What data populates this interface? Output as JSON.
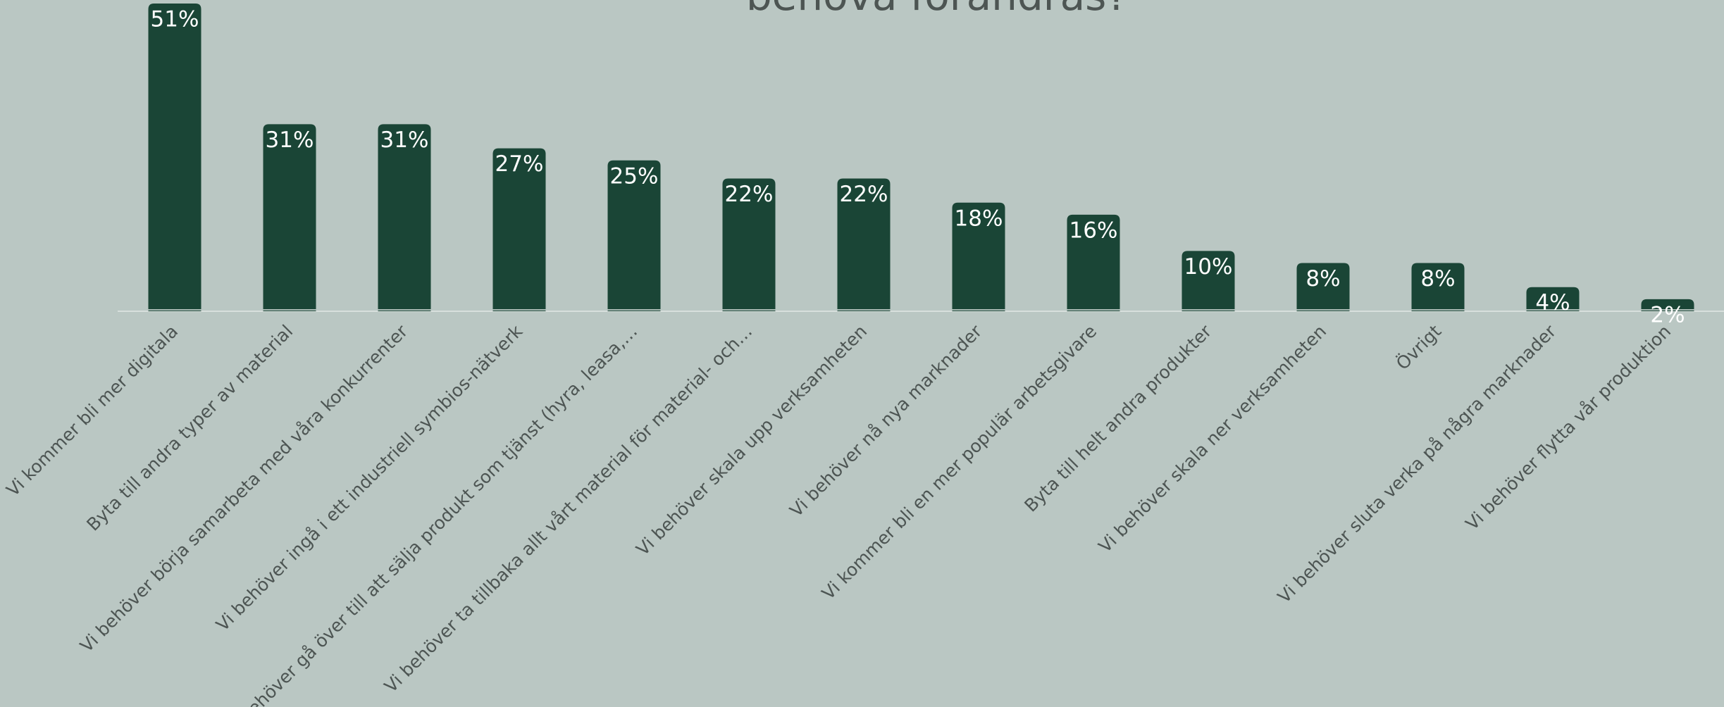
{
  "chart_data": {
    "type": "bar",
    "title": "behöva förändras?",
    "categories": [
      "Vi kommer bli mer digitala",
      "Byta till andra typer av material",
      "Vi behöver börja samarbeta med våra konkurrenter",
      "Vi behöver ingå i ett industriell symbios-nätverk",
      "Vi behöver gå över till att sälja produkt som tjänst (hyra, leasa,…",
      "Vi behöver ta tillbaka allt vårt material för material- och…",
      "Vi behöver skala upp verksamheten",
      "Vi behöver nå nya marknader",
      "Vi kommer bli en mer populär arbetsgivare",
      "Byta till helt andra produkter",
      "Vi behöver skala ner verksamheten",
      "Övrigt",
      "Vi behöver sluta verka på några marknader",
      "Vi behöver flytta vår produktion"
    ],
    "values": [
      51,
      31,
      31,
      27,
      25,
      22,
      22,
      18,
      16,
      10,
      8,
      8,
      4,
      2
    ],
    "value_labels": [
      "51%",
      "31%",
      "31%",
      "27%",
      "25%",
      "22%",
      "22%",
      "18%",
      "16%",
      "10%",
      "8%",
      "8%",
      "4%",
      "2%"
    ],
    "color": "#1a4536"
  }
}
